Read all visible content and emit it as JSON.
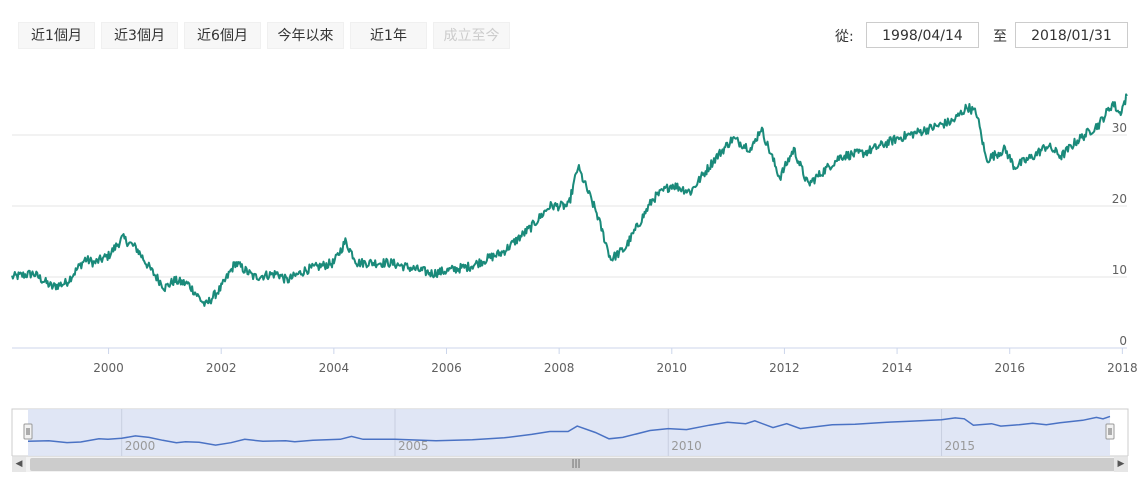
{
  "range_selector": {
    "buttons": [
      {
        "label": "近1個月",
        "enabled": true
      },
      {
        "label": "近3個月",
        "enabled": true
      },
      {
        "label": "近6個月",
        "enabled": true
      },
      {
        "label": "今年以來",
        "enabled": true
      },
      {
        "label": "近1年",
        "enabled": true
      },
      {
        "label": "成立至今",
        "enabled": false
      }
    ],
    "from_label": "從:",
    "from_value": "1998/04/14",
    "to_label": "至",
    "to_value": "2018/01/31"
  },
  "scrollbar": {
    "left_icon": "arrow-left-icon",
    "right_icon": "arrow-right-icon",
    "grip_icon": "grip-icon",
    "left_glyph": "◀",
    "right_glyph": "▶",
    "grip_glyph": "|||"
  },
  "colors": {
    "series": "#1a8a7a",
    "navigator_series": "#4a72c4",
    "navigator_mask": "#dde3f4"
  },
  "chart_data": {
    "type": "line",
    "title": "",
    "xlabel": "",
    "ylabel": "",
    "x_ticks": [
      "2000",
      "2002",
      "2004",
      "2006",
      "2008",
      "2010",
      "2012",
      "2014",
      "2016",
      "2018"
    ],
    "y_ticks": [
      "0",
      "10",
      "20",
      "30"
    ],
    "ylim": [
      0,
      40
    ],
    "xlim": [
      "1998-04-14",
      "2018-01-31"
    ],
    "grid": true,
    "navigator_ticks": [
      "2000",
      "2005",
      "2010",
      "2015"
    ],
    "series": [
      {
        "name": "",
        "points": [
          [
            "1998-04-14",
            10.0
          ],
          [
            "1998-09-01",
            10.5
          ],
          [
            "1999-01-01",
            8.6
          ],
          [
            "1999-04-01",
            9.2
          ],
          [
            "1999-08-01",
            12.5
          ],
          [
            "1999-10-01",
            12.0
          ],
          [
            "2000-01-01",
            13.0
          ],
          [
            "2000-04-01",
            15.5
          ],
          [
            "2000-07-01",
            14.0
          ],
          [
            "2000-10-01",
            11.0
          ],
          [
            "2001-01-01",
            8.5
          ],
          [
            "2001-03-01",
            9.5
          ],
          [
            "2001-06-01",
            9.0
          ],
          [
            "2001-09-20",
            6.0
          ],
          [
            "2002-01-01",
            8.5
          ],
          [
            "2002-04-01",
            12.0
          ],
          [
            "2002-08-01",
            10.0
          ],
          [
            "2003-01-01",
            10.5
          ],
          [
            "2003-03-01",
            9.5
          ],
          [
            "2003-07-01",
            11.0
          ],
          [
            "2004-01-01",
            12.0
          ],
          [
            "2004-03-15",
            15.0
          ],
          [
            "2004-06-01",
            12.0
          ],
          [
            "2005-01-01",
            12.0
          ],
          [
            "2005-10-01",
            10.5
          ],
          [
            "2006-06-01",
            11.5
          ],
          [
            "2007-01-01",
            13.5
          ],
          [
            "2007-07-01",
            17.0
          ],
          [
            "2007-11-01",
            20.0
          ],
          [
            "2008-03-01",
            20.0
          ],
          [
            "2008-05-01",
            25.5
          ],
          [
            "2008-09-01",
            19.0
          ],
          [
            "2008-12-01",
            12.5
          ],
          [
            "2009-03-01",
            14.0
          ],
          [
            "2009-09-01",
            21.0
          ],
          [
            "2010-01-01",
            23.0
          ],
          [
            "2010-05-01",
            22.0
          ],
          [
            "2010-10-01",
            26.5
          ],
          [
            "2011-02-01",
            29.5
          ],
          [
            "2011-06-01",
            28.0
          ],
          [
            "2011-08-01",
            31.0
          ],
          [
            "2011-12-01",
            24.0
          ],
          [
            "2012-03-01",
            28.0
          ],
          [
            "2012-06-01",
            23.0
          ],
          [
            "2013-01-01",
            27.0
          ],
          [
            "2013-06-01",
            27.5
          ],
          [
            "2014-01-01",
            29.5
          ],
          [
            "2014-06-01",
            30.5
          ],
          [
            "2015-01-01",
            32.0
          ],
          [
            "2015-04-01",
            34.0
          ],
          [
            "2015-06-01",
            33.0
          ],
          [
            "2015-08-01",
            26.5
          ],
          [
            "2015-12-01",
            28.0
          ],
          [
            "2016-02-01",
            25.5
          ],
          [
            "2016-06-01",
            27.0
          ],
          [
            "2016-09-01",
            28.5
          ],
          [
            "2016-12-01",
            27.0
          ],
          [
            "2017-03-01",
            29.0
          ],
          [
            "2017-08-01",
            31.5
          ],
          [
            "2017-11-01",
            34.5
          ],
          [
            "2017-12-15",
            33.0
          ],
          [
            "2018-01-31",
            35.5
          ]
        ]
      }
    ]
  }
}
